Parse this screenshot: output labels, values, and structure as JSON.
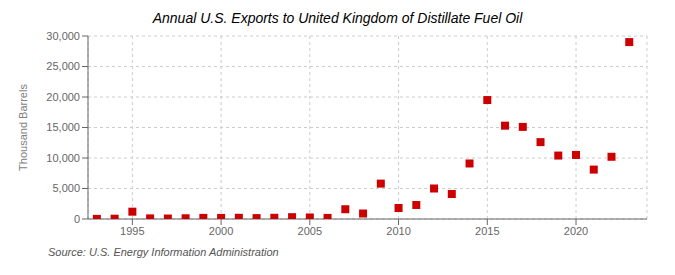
{
  "chart_data": {
    "type": "scatter",
    "title": "Annual U.S. Exports to United Kingdom of Distillate Fuel Oil",
    "ylabel": "Thousand Barrels",
    "annotation": "Source: U.S. Energy Information Administration",
    "x": [
      1993,
      1994,
      1995,
      1996,
      1997,
      1998,
      1999,
      2000,
      2001,
      2002,
      2003,
      2004,
      2005,
      2006,
      2007,
      2008,
      2009,
      2010,
      2011,
      2012,
      2013,
      2014,
      2015,
      2016,
      2017,
      2018,
      2019,
      2020,
      2021,
      2022,
      2023
    ],
    "values": [
      20,
      50,
      1200,
      100,
      80,
      120,
      180,
      180,
      200,
      150,
      200,
      300,
      250,
      180,
      1600,
      900,
      5800,
      1800,
      2300,
      5000,
      4100,
      9100,
      19500,
      15300,
      15100,
      12600,
      10400,
      10500,
      8100,
      10200,
      29000
    ],
    "color": "#cc0000",
    "marker": "square",
    "xlim": [
      1992.5,
      2024
    ],
    "ylim": [
      0,
      30000
    ],
    "xticks": [
      1995,
      2000,
      2005,
      2010,
      2015,
      2020
    ],
    "yticks": [
      0,
      {
        "value": 5000,
        "label": "5,000"
      },
      {
        "value": 10000,
        "label": "10,000"
      },
      {
        "value": 15000,
        "label": "15,000"
      },
      {
        "value": 20000,
        "label": "20,000"
      },
      {
        "value": 25000,
        "label": "25,000"
      },
      {
        "value": 30000,
        "label": "30,000"
      }
    ],
    "grid": true
  }
}
